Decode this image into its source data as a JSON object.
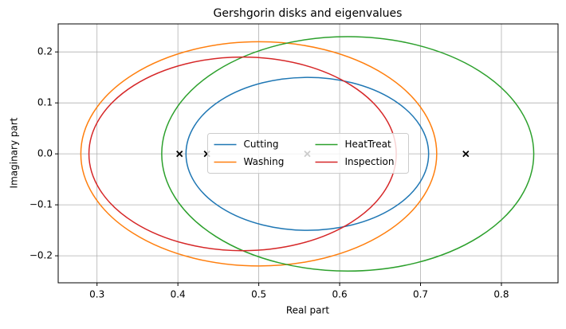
{
  "chart_data": {
    "type": "gershgorin",
    "title": "Gershgorin disks and eigenvalues",
    "x_label": "Real part",
    "y_label": "Imaginary part",
    "xlim": [
      0.252,
      0.87
    ],
    "ylim": [
      -0.253,
      0.255
    ],
    "xticks": [
      0.3,
      0.4,
      0.5,
      0.6,
      0.7,
      0.8
    ],
    "yticks": [
      {
        "value": -0.2,
        "label": "−0.2"
      },
      {
        "value": -0.1,
        "label": "−0.1"
      },
      {
        "value": 0,
        "label": "0.0"
      },
      0.1,
      0.2
    ],
    "grid": true,
    "legend": "center",
    "legend_columns": 2,
    "series": [
      {
        "name": "Cutting",
        "color": "#1f77b4",
        "center": 0.56,
        "radius": 0.15
      },
      {
        "name": "Washing",
        "color": "#ff7f0e",
        "center": 0.5,
        "radius": 0.22
      },
      {
        "name": "HeatTreat",
        "color": "#2ca02c",
        "center": 0.61,
        "radius": 0.23
      },
      {
        "name": "Inspection",
        "color": "#d62728",
        "center": 0.48,
        "radius": 0.19
      }
    ],
    "eigenvalues": {
      "color": "#000000",
      "real": [
        0.402,
        0.436,
        0.56,
        0.756
      ],
      "imag": [
        0,
        0,
        0,
        0
      ]
    }
  }
}
